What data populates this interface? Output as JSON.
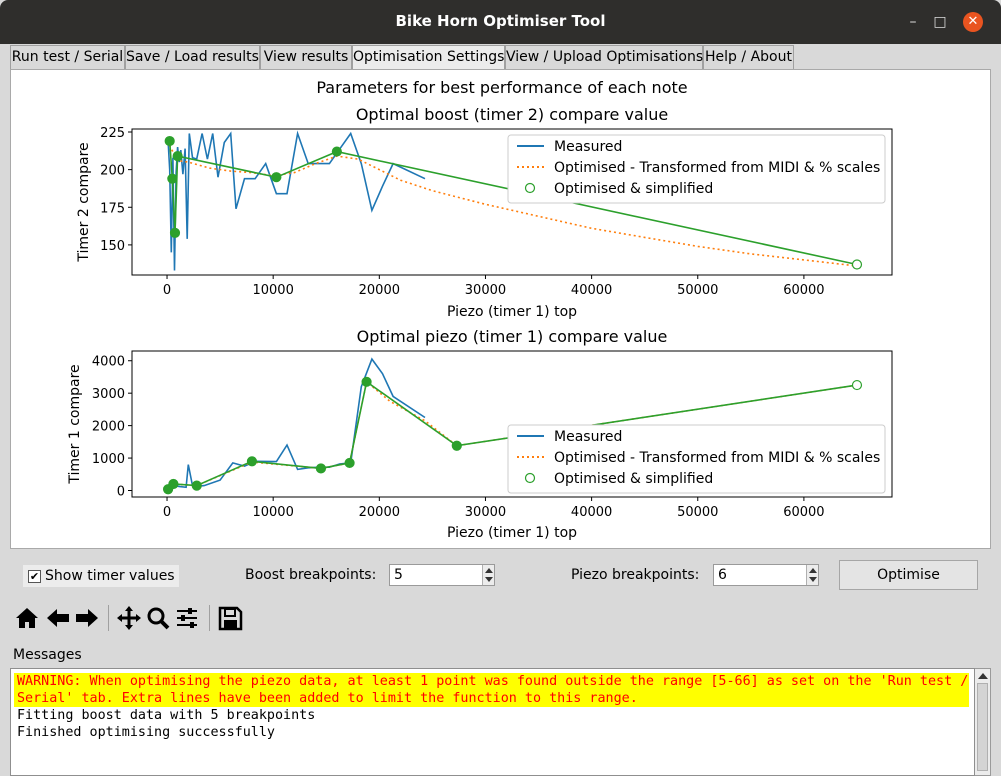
{
  "window": {
    "title": "Bike Horn Optimiser Tool",
    "minimize_glyph": "–",
    "maximize_glyph": "□",
    "close_glyph": "✕"
  },
  "tabs": [
    {
      "label": "Run test / Serial",
      "active": false
    },
    {
      "label": "Save / Load results",
      "active": false
    },
    {
      "label": "View results",
      "active": false
    },
    {
      "label": "Optimisation Settings",
      "active": true
    },
    {
      "label": "View / Upload Optimisations",
      "active": false
    },
    {
      "label": "Help / About",
      "active": false
    }
  ],
  "figure": {
    "suptitle": "Parameters for best performance of each note"
  },
  "chart_data": [
    {
      "type": "line",
      "title": "Optimal boost (timer 2) compare value",
      "xlabel": "Piezo (timer 1) top",
      "ylabel": "Timer 2 compare",
      "xlim": [
        -3300,
        68300
      ],
      "ylim": [
        130,
        227
      ],
      "xticks": [
        0,
        10000,
        20000,
        30000,
        40000,
        50000,
        60000
      ],
      "yticks": [
        150,
        175,
        200,
        225
      ],
      "legend": "top-right",
      "series": [
        {
          "name": "Measured",
          "style": "solid",
          "color": "#1f77b4",
          "x": [
            100,
            250,
            400,
            550,
            700,
            850,
            1000,
            1150,
            1300,
            1500,
            1700,
            1900,
            2100,
            2400,
            2800,
            3300,
            3800,
            4300,
            4800,
            5400,
            6000,
            6500,
            7300,
            8300,
            9300,
            10300,
            11300,
            12300,
            13300,
            14300,
            15300,
            16300,
            17300,
            18300,
            19300,
            20300,
            21300,
            24300
          ],
          "y": [
            219,
            200,
            145,
            208,
            133,
            198,
            215,
            205,
            213,
            197,
            214,
            154,
            224,
            208,
            207,
            224,
            207,
            224,
            195,
            218,
            224,
            174,
            194,
            194,
            204,
            184,
            184,
            224,
            204,
            204,
            204,
            214,
            224,
            204,
            173,
            189,
            204,
            194
          ]
        },
        {
          "name": "Optimised - Transformed from MIDI & % scales",
          "style": "dotted",
          "color": "#ff7f0e",
          "x": [
            0,
            1000,
            2000,
            4000,
            6000,
            8000,
            10000,
            12000,
            14000,
            16000,
            18000,
            20000,
            22000,
            25000,
            30000,
            35000,
            40000,
            45000,
            50000,
            55000,
            60000,
            65000
          ],
          "y": [
            219,
            206,
            205,
            201,
            199,
            198,
            196,
            198,
            204,
            209,
            207,
            200,
            193,
            186,
            177,
            169,
            161,
            155,
            149,
            144,
            140,
            136
          ]
        },
        {
          "name": "Optimised & simplified",
          "style": "solid-with-markers",
          "color": "#2ca02c",
          "x": [
            250,
            500,
            750,
            1000,
            10300,
            16000,
            65000
          ],
          "y": [
            219,
            194,
            158,
            209,
            195,
            212,
            137
          ]
        }
      ]
    },
    {
      "type": "line",
      "title": "Optimal piezo (timer 1) compare value",
      "xlabel": "Piezo (timer 1) top",
      "ylabel": "Timer 1 compare",
      "xlim": [
        -3300,
        68300
      ],
      "ylim": [
        -200,
        4300
      ],
      "xticks": [
        0,
        10000,
        20000,
        30000,
        40000,
        50000,
        60000
      ],
      "yticks": [
        0,
        1000,
        2000,
        3000,
        4000
      ],
      "legend": "bottom-right",
      "series": [
        {
          "name": "Measured",
          "style": "solid",
          "color": "#1f77b4",
          "x": [
            100,
            600,
            1200,
            1800,
            2000,
            2400,
            2800,
            3500,
            5000,
            6200,
            7300,
            8300,
            10300,
            11300,
            12300,
            13300,
            14300,
            15300,
            16300,
            17300,
            18300,
            19300,
            20300,
            21300,
            24300
          ],
          "y": [
            50,
            150,
            120,
            100,
            800,
            150,
            130,
            150,
            320,
            850,
            750,
            900,
            890,
            1400,
            650,
            700,
            720,
            720,
            820,
            850,
            3200,
            4050,
            3600,
            2900,
            2250
          ]
        },
        {
          "name": "Optimised - Transformed from MIDI & % scales",
          "style": "dotted",
          "color": "#ff7f0e",
          "x": [
            100,
            600,
            2800,
            8000,
            14500,
            17200,
            18800,
            21000,
            24300,
            27300,
            65000
          ],
          "y": [
            40,
            200,
            150,
            880,
            680,
            850,
            3350,
            2750,
            2150,
            1380,
            3250
          ]
        },
        {
          "name": "Optimised & simplified",
          "style": "solid-with-markers",
          "color": "#2ca02c",
          "x": [
            100,
            600,
            2800,
            8000,
            14500,
            17200,
            18800,
            27300,
            65000
          ],
          "y": [
            40,
            200,
            150,
            900,
            680,
            850,
            3350,
            1380,
            3250
          ]
        }
      ]
    }
  ],
  "controls": {
    "show_timer_values_label": "Show timer values",
    "show_timer_values_checked": true,
    "check_glyph": "✔",
    "boost_breakpoints_label": "Boost breakpoints:",
    "boost_breakpoints_value": "5",
    "piezo_breakpoints_label": "Piezo breakpoints:",
    "piezo_breakpoints_value": "6",
    "optimise_label": "Optimise"
  },
  "toolbar": {
    "buttons": [
      "home-icon",
      "back-arrow-icon",
      "forward-arrow-icon",
      "pan-icon",
      "zoom-icon",
      "configure-subplots-icon",
      "save-icon"
    ]
  },
  "messages": {
    "label": "Messages",
    "lines": [
      {
        "text": "WARNING: When optimising the piezo data, at least 1 point was found outside the range [5-66] as set on the 'Run test /",
        "level": "warning"
      },
      {
        "text": "Serial' tab. Extra lines have been added to limit the function to this range.",
        "level": "warning"
      },
      {
        "text": "Fitting boost data with 5 breakpoints",
        "level": "info"
      },
      {
        "text": "Finished optimising successfully",
        "level": "info"
      }
    ]
  }
}
